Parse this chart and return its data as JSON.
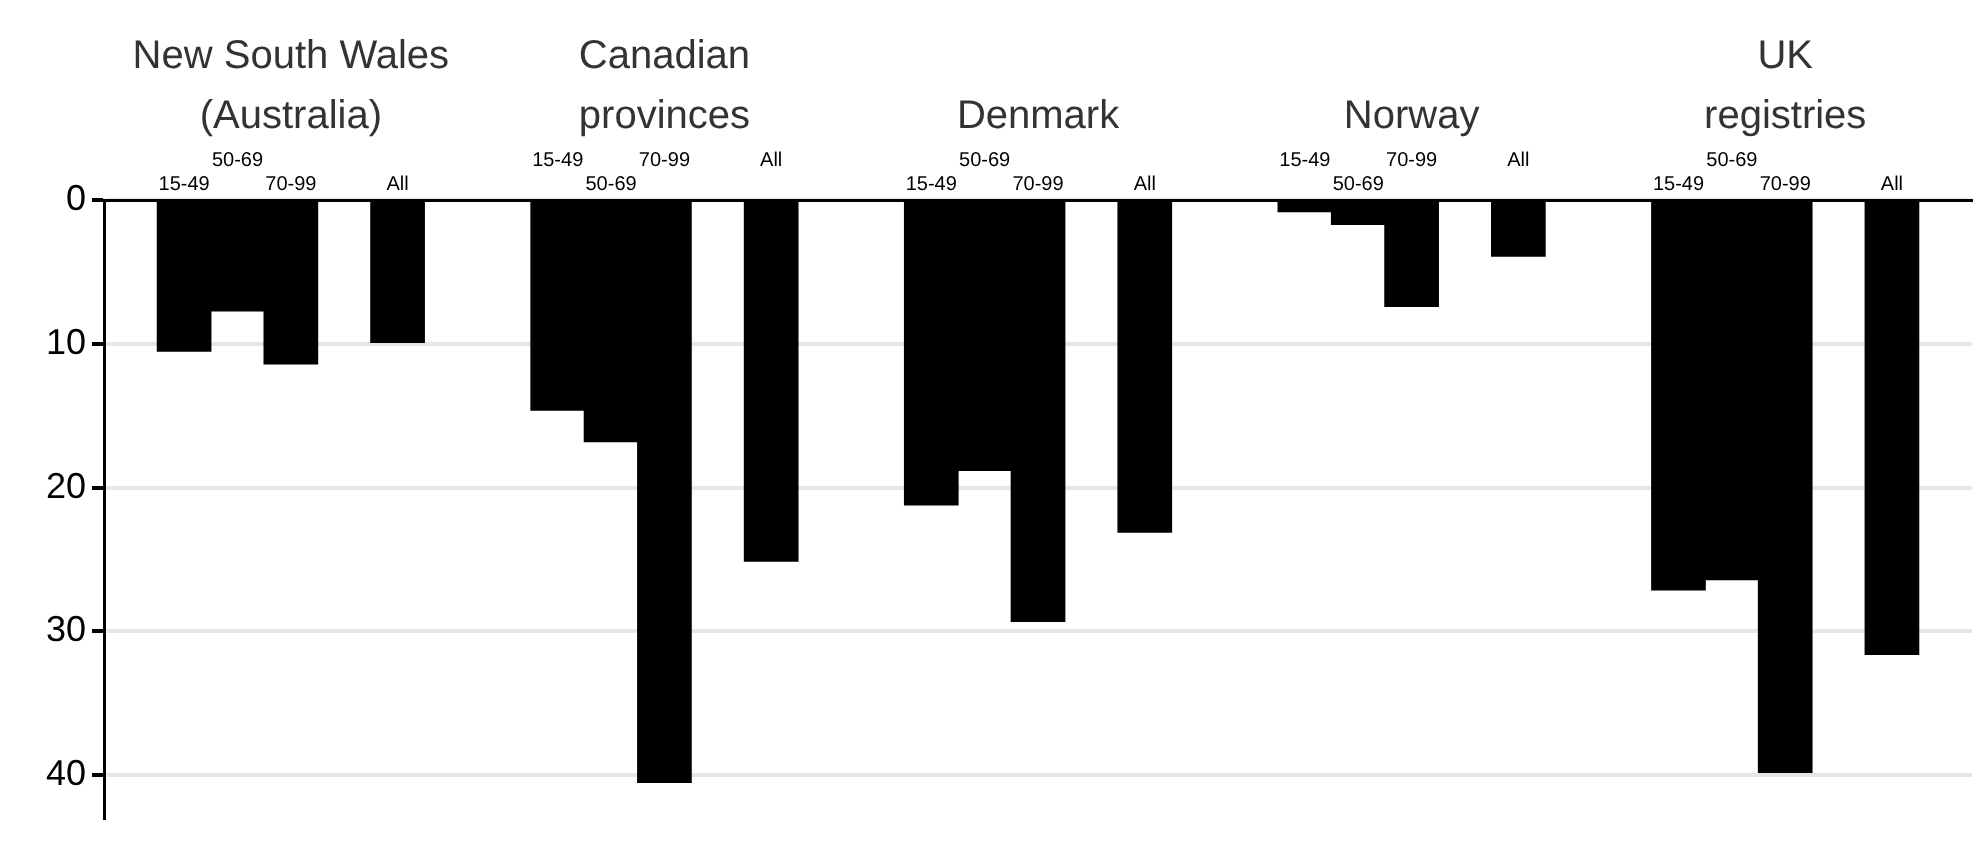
{
  "chart_data": {
    "type": "bar",
    "categories": [
      null,
      "15-49",
      "50-69",
      "70-99",
      null,
      "All",
      null,
      null,
      "15-49",
      "50-69",
      "70-99",
      null,
      "All",
      null,
      null,
      "15-49",
      "50-69",
      "70-99",
      null,
      "All",
      null,
      null,
      "15-49",
      "50-69",
      "70-99",
      null,
      "All",
      null,
      null,
      "15-49",
      "50-69",
      "70-99",
      null,
      "All",
      null
    ],
    "values": [
      null,
      10.5,
      7.7,
      11.4,
      null,
      9.9,
      null,
      null,
      14.6,
      16.8,
      40.5,
      null,
      25.1,
      null,
      null,
      21.2,
      18.8,
      29.3,
      null,
      23.1,
      null,
      null,
      0.8,
      1.7,
      7.4,
      null,
      3.9,
      null,
      null,
      27.1,
      26.4,
      39.8,
      null,
      31.6,
      null
    ],
    "color": "#000000",
    "ylim": [
      43,
      0
    ],
    "yticks": [
      0,
      10,
      20,
      30,
      40
    ],
    "grid": "y",
    "legend": false,
    "annotations": [
      "New South Wales\n(Australia)",
      "Canadian\nprovinces",
      "Denmark",
      "Norway",
      "UK\nregistries"
    ]
  }
}
